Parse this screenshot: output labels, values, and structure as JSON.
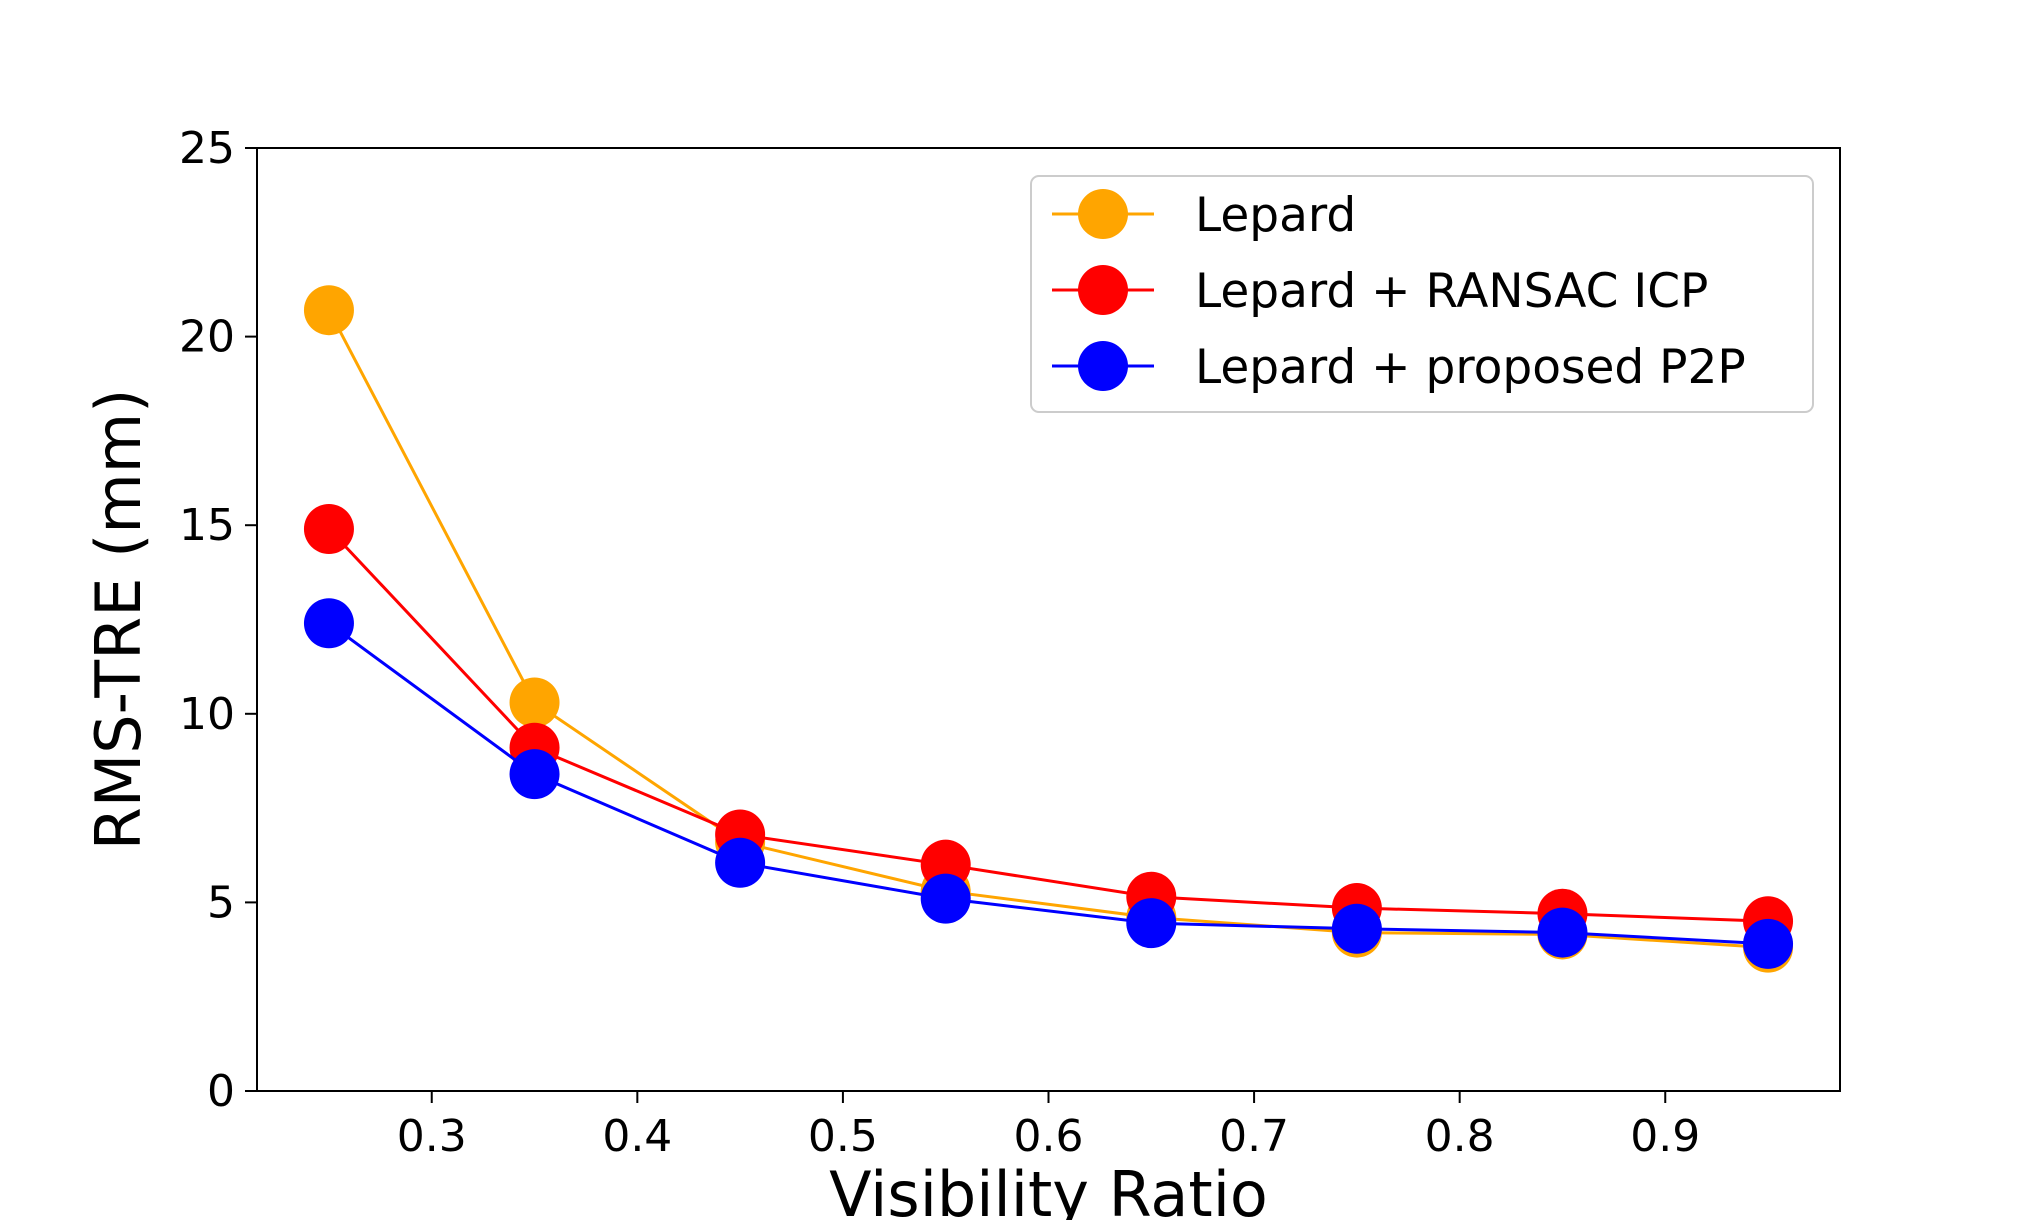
{
  "chart_data": {
    "type": "line",
    "title": "",
    "xlabel": "Visibility Ratio",
    "ylabel": "RMS-TRE (mm)",
    "xlim": [
      0.215,
      0.985
    ],
    "ylim": [
      0,
      25
    ],
    "x": [
      0.25,
      0.35,
      0.45,
      0.55,
      0.65,
      0.75,
      0.85,
      0.95
    ],
    "xticks": [
      0.3,
      0.4,
      0.5,
      0.6,
      0.7,
      0.8,
      0.9
    ],
    "xtick_labels": [
      "0.3",
      "0.4",
      "0.5",
      "0.6",
      "0.7",
      "0.8",
      "0.9"
    ],
    "yticks": [
      0,
      5,
      10,
      15,
      20,
      25
    ],
    "ytick_labels": [
      "0",
      "5",
      "10",
      "15",
      "20",
      "25"
    ],
    "grid": false,
    "legend_position": "top-right",
    "series": [
      {
        "name": "Lepard",
        "color": "#FFA500",
        "values": [
          20.7,
          10.3,
          6.6,
          5.3,
          4.6,
          4.2,
          4.15,
          3.8
        ]
      },
      {
        "name": "Lepard + RANSAC ICP",
        "color": "#FF0000",
        "values": [
          14.9,
          9.1,
          6.8,
          6.0,
          5.15,
          4.85,
          4.7,
          4.5
        ]
      },
      {
        "name": "Lepard + proposed P2P",
        "color": "#0000FF",
        "values": [
          12.4,
          8.4,
          6.05,
          5.1,
          4.45,
          4.3,
          4.2,
          3.9
        ]
      }
    ]
  }
}
